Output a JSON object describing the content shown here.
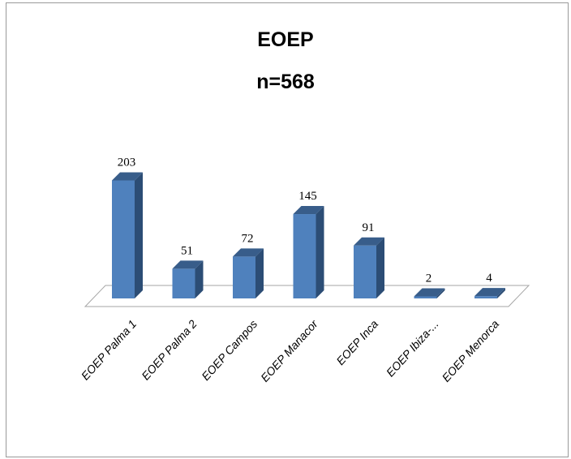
{
  "chart_data": {
    "type": "bar",
    "title": "EOEP",
    "subtitle": "n=568",
    "categories": [
      "EOEP Palma 1",
      "EOEP Palma 2",
      "EOEP Campos",
      "EOEP Manacor",
      "EOEP Inca",
      "EOEP Ibiza-...",
      "EOEP Menorca"
    ],
    "values": [
      203,
      51,
      72,
      145,
      91,
      2,
      4
    ],
    "value_labels": [
      "203",
      "51",
      "72",
      "145",
      "91",
      "2",
      "4"
    ],
    "ylim": [
      0,
      210
    ],
    "grid": false,
    "legend": "none",
    "colors": {
      "bar_front": "#4f81bd",
      "bar_side": "#2c4d75",
      "bar_top": "#385d8a",
      "floor_fill": "#ffffff",
      "floor_edge": "#a6a6a6"
    }
  }
}
